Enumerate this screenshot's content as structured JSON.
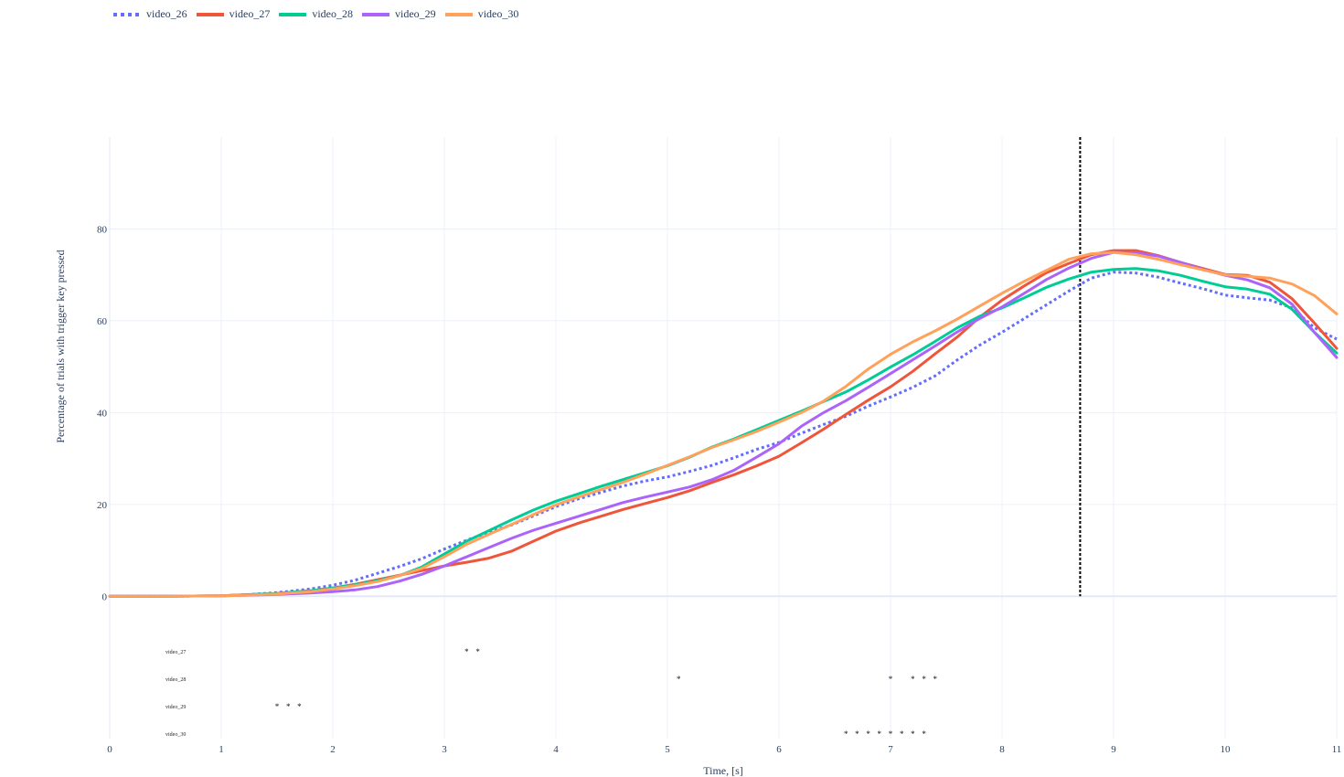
{
  "chart_data": {
    "type": "line",
    "xlabel": "Time, [s]",
    "ylabel": "Percentage of trials with trigger key pressed",
    "xlim": [
      0,
      11
    ],
    "ylim": [
      -31,
      100
    ],
    "x_ticks": [
      0,
      1,
      2,
      3,
      4,
      5,
      6,
      7,
      8,
      9,
      10,
      11
    ],
    "y_ticks": [
      0,
      20,
      40,
      60,
      80
    ],
    "grid": true,
    "legend_position": "top-left, horizontal",
    "vertical_line": {
      "x": 8.7,
      "style": "dotted",
      "color": "#000000"
    },
    "x": [
      0,
      0.5,
      1,
      1.2,
      1.5,
      1.8,
      2,
      2.2,
      2.4,
      2.6,
      2.8,
      3,
      3.2,
      3.4,
      3.6,
      3.8,
      4,
      4.2,
      4.4,
      4.6,
      4.8,
      5,
      5.2,
      5.4,
      5.6,
      5.8,
      6,
      6.2,
      6.4,
      6.6,
      6.8,
      7,
      7.2,
      7.4,
      7.6,
      7.8,
      8,
      8.2,
      8.4,
      8.6,
      8.8,
      9,
      9.2,
      9.4,
      9.6,
      9.8,
      10,
      10.2,
      10.4,
      10.6,
      10.8,
      11
    ],
    "series": [
      {
        "name": "video_26",
        "color": "#636efa",
        "dash": "dot",
        "values": [
          0,
          0,
          0.1,
          0.3,
          0.8,
          1.6,
          2.4,
          3.5,
          5,
          6.5,
          8.2,
          10.3,
          12.2,
          14,
          15.5,
          17.5,
          19.5,
          21.2,
          22.6,
          24,
          25.1,
          26,
          27.2,
          28.5,
          30.2,
          32,
          33.5,
          35.5,
          37.4,
          39.2,
          41.4,
          43.4,
          45.5,
          48,
          51.5,
          54.7,
          57.5,
          60.5,
          63.5,
          66.5,
          69.3,
          70.6,
          70.4,
          69.5,
          68.2,
          67,
          65.6,
          65,
          64.5,
          62.8,
          58.5,
          56
        ]
      },
      {
        "name": "video_27",
        "color": "#ef553b",
        "dash": "solid",
        "values": [
          0,
          0,
          0.1,
          0.3,
          0.6,
          1.2,
          1.8,
          2.6,
          3.6,
          4.6,
          5.6,
          6.6,
          7.4,
          8.3,
          9.8,
          12,
          14.2,
          15.9,
          17.4,
          18.9,
          20.2,
          21.5,
          23,
          24.8,
          26.5,
          28.4,
          30.5,
          33.4,
          36.4,
          39.6,
          42.7,
          45.6,
          49,
          52.8,
          56.5,
          60.8,
          64.5,
          67.6,
          70.5,
          72.5,
          74.4,
          75.3,
          75.3,
          74.2,
          72.7,
          71.4,
          70.1,
          69.9,
          68.4,
          64.8,
          59.5,
          54
        ]
      },
      {
        "name": "video_28",
        "color": "#00cc96",
        "dash": "solid",
        "values": [
          0,
          0,
          0.1,
          0.3,
          0.6,
          1.2,
          1.8,
          2.5,
          3.4,
          4.5,
          6.4,
          9.2,
          12,
          14.3,
          16.6,
          18.8,
          20.7,
          22.3,
          23.9,
          25.4,
          26.9,
          28.4,
          30.3,
          32.5,
          34.3,
          36.3,
          38.3,
          40.3,
          42.4,
          44.5,
          47.1,
          49.9,
          52.6,
          55.5,
          58.5,
          61,
          62.8,
          65,
          67.3,
          69.1,
          70.6,
          71.2,
          71.4,
          70.9,
          69.9,
          68.6,
          67.4,
          66.9,
          65.8,
          62.5,
          57.5,
          53
        ]
      },
      {
        "name": "video_29",
        "color": "#ab63fa",
        "dash": "solid",
        "values": [
          0,
          0,
          0.1,
          0.2,
          0.4,
          0.7,
          1.0,
          1.4,
          2.1,
          3.3,
          4.8,
          6.6,
          8.6,
          10.6,
          12.6,
          14.4,
          15.9,
          17.4,
          18.9,
          20.4,
          21.6,
          22.7,
          23.8,
          25.4,
          27.5,
          30.3,
          33.2,
          37,
          40,
          42.6,
          45.5,
          48.5,
          51.5,
          54.5,
          57.6,
          60.5,
          63,
          66,
          69,
          71.5,
          73.6,
          74.9,
          74.8,
          74.1,
          72.7,
          71.2,
          69.9,
          68.9,
          67.2,
          63.6,
          57.5,
          52
        ]
      },
      {
        "name": "video_30",
        "color": "#ffa15a",
        "dash": "solid",
        "values": [
          0,
          0,
          0.1,
          0.2,
          0.5,
          1.0,
          1.6,
          2.3,
          3.2,
          4.5,
          6.1,
          8.6,
          11.3,
          13.5,
          15.6,
          17.8,
          19.9,
          21.6,
          23.2,
          24.8,
          26.6,
          28.5,
          30.4,
          32.4,
          34.1,
          35.9,
          37.9,
          40,
          42.5,
          45.7,
          49.5,
          52.7,
          55.4,
          57.8,
          60.4,
          63.2,
          66,
          68.6,
          71,
          73.4,
          74.6,
          74.9,
          74.4,
          73.4,
          72.2,
          71.1,
          70,
          69.7,
          69.3,
          68,
          65.5,
          61.5
        ]
      }
    ],
    "significance": [
      {
        "name": "video_27",
        "times": [
          3.2,
          3.3
        ]
      },
      {
        "name": "video_28",
        "times": [
          5.1,
          7.0,
          7.2,
          7.3,
          7.4
        ]
      },
      {
        "name": "video_29",
        "times": [
          1.5,
          1.6,
          1.7
        ]
      },
      {
        "name": "video_30",
        "times": [
          6.6,
          6.7,
          6.8,
          6.9,
          7.0,
          7.1,
          7.2,
          7.3
        ]
      }
    ]
  }
}
